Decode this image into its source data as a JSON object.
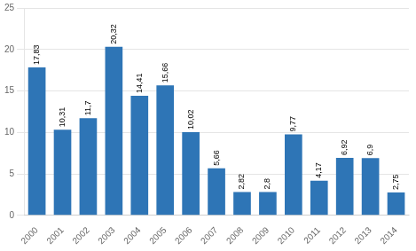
{
  "chart_data": {
    "type": "bar",
    "categories": [
      "2000",
      "2001",
      "2002",
      "2003",
      "2004",
      "2005",
      "2006",
      "2007",
      "2008",
      "2009",
      "2010",
      "2011",
      "2012",
      "2013",
      "2014"
    ],
    "values": [
      17.83,
      10.31,
      11.7,
      20.32,
      14.41,
      15.66,
      10.02,
      5.66,
      2.82,
      2.8,
      9.77,
      4.17,
      6.92,
      6.9,
      2.75
    ],
    "value_labels": [
      "17,83",
      "10,31",
      "11,7",
      "20,32",
      "14,41",
      "15,66",
      "10,02",
      "5,66",
      "2,82",
      "2,8",
      "9,77",
      "4,17",
      "6,92",
      "6,9",
      "2,75"
    ],
    "color": "#2e75b6",
    "ylim": [
      0,
      25
    ],
    "yticks": [
      0,
      5,
      10,
      15,
      20,
      25
    ],
    "grid": true,
    "data_labels": true
  }
}
